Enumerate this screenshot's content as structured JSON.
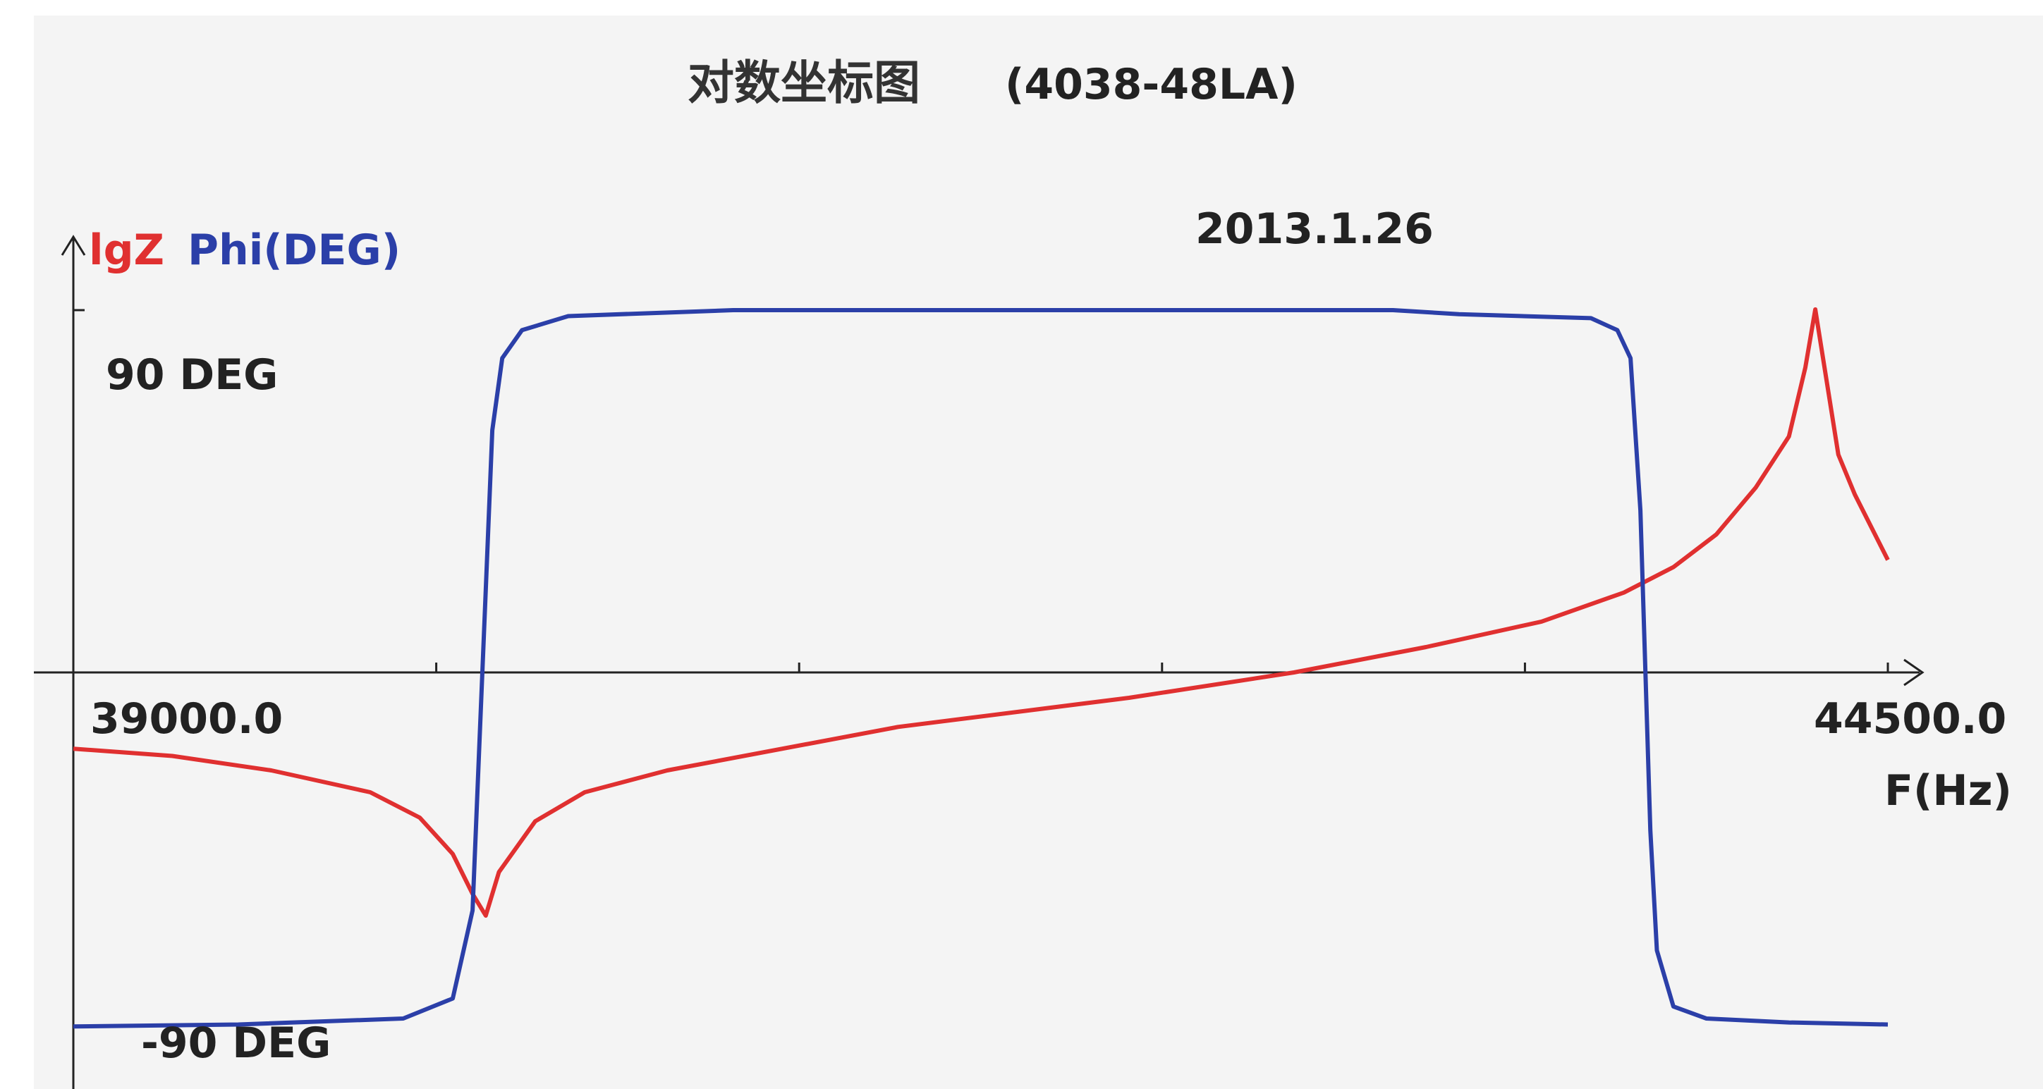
{
  "chart_data": {
    "type": "line",
    "title": "对数坐标图",
    "subtitle": "(4038-48LA)",
    "date": "2013.1.26",
    "ylabel_lgz": "lgZ",
    "ylabel_phi": "Phi(DEG)",
    "xlabel": "F(Hz)",
    "x_min_label": "39000.0",
    "x_max_label": "44500.0",
    "phi_high_label": "90 DEG",
    "phi_low_label": "-90 DEG",
    "xlim": [
      39000,
      44500
    ],
    "phi_ylim": [
      -90,
      90
    ],
    "grid": false,
    "legend": "top-left",
    "colors": {
      "lgz": "#e03030",
      "phi": "#2b3fa8",
      "axis": "#222222"
    },
    "series": [
      {
        "name": "Phi(DEG)",
        "x": [
          39000,
          39500,
          40000,
          40150,
          40210,
          40230,
          40250,
          40270,
          40300,
          40360,
          40500,
          41000,
          41500,
          42000,
          42500,
          43000,
          43200,
          43600,
          43680,
          43720,
          43750,
          43780,
          43800,
          43850,
          43950,
          44200,
          44500
        ],
        "y": [
          -89,
          -88.5,
          -87,
          -82,
          -60,
          -20,
          20,
          60,
          78,
          85,
          88.5,
          90,
          90,
          90,
          90,
          90,
          89,
          88,
          85,
          78,
          40,
          -40,
          -70,
          -84,
          -87,
          -88,
          -88.5
        ]
      },
      {
        "name": "lgZ",
        "rel_y": [
          -0.21,
          -0.23,
          -0.27,
          -0.33,
          -0.4,
          -0.5,
          -0.61,
          -0.67,
          -0.55,
          -0.41,
          -0.33,
          -0.27,
          -0.15,
          -0.07,
          0.0,
          0.07,
          0.14,
          0.22,
          0.29,
          0.38,
          0.51,
          0.65,
          0.84,
          1.0,
          0.6,
          0.49,
          0.4,
          0.31
        ],
        "x": [
          39000,
          39300,
          39600,
          39900,
          40050,
          40150,
          40210,
          40250,
          40290,
          40400,
          40550,
          40800,
          41500,
          42200,
          42700,
          43100,
          43450,
          43700,
          43850,
          43980,
          44100,
          44200,
          44250,
          44280,
          44350,
          44400,
          44450,
          44500
        ]
      }
    ]
  }
}
